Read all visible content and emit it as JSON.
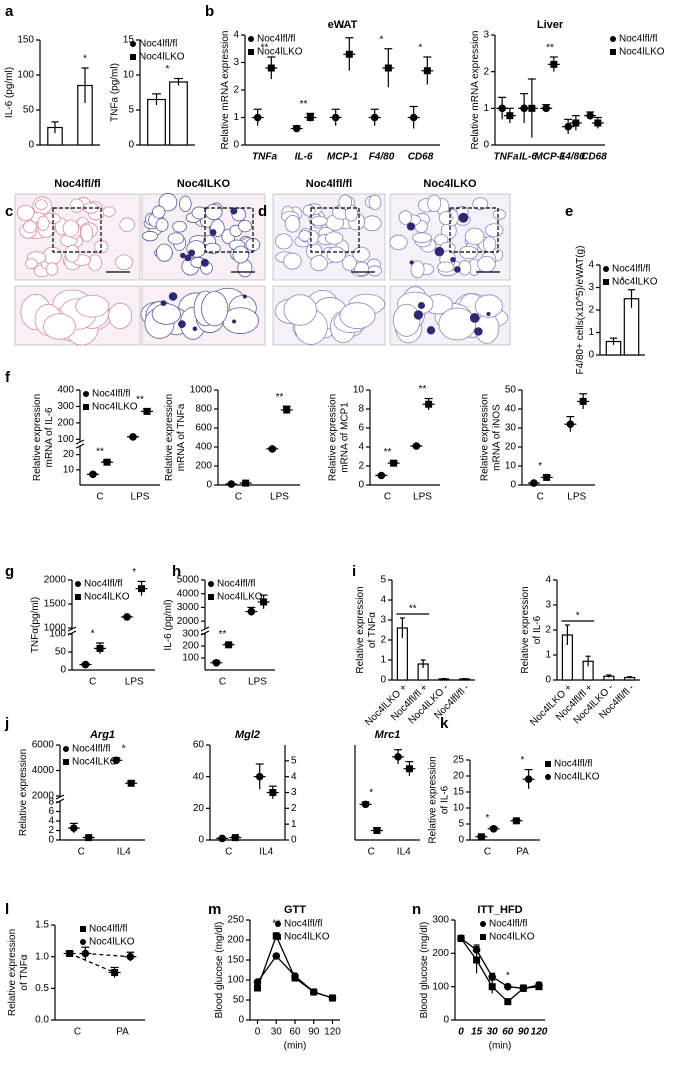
{
  "chart_data": [
    {
      "type": "bar",
      "label": "a",
      "ylabel": "IL-6 (pg/ml)",
      "categories": [
        null,
        null
      ],
      "values": [
        25,
        85
      ],
      "errors": [
        8,
        25
      ],
      "color": "#ffffff",
      "ylim": [
        0,
        150
      ],
      "yticks": [
        0,
        50,
        100,
        150
      ],
      "significance": [
        null,
        "*"
      ]
    },
    {
      "type": "bar",
      "ylabel": "TNFa (pg/ml)",
      "categories": [
        null
      ],
      "series": [
        {
          "name": "Noc4lfl/fl",
          "color": "#ffffff",
          "values": [
            6.5
          ],
          "errors": [
            0.8
          ]
        },
        {
          "name": "Noc4lLKO",
          "color": "#ffffff",
          "values": [
            9
          ],
          "errors": [
            0.5
          ]
        }
      ],
      "ylim": [
        0,
        15
      ],
      "yticks": [
        0,
        5,
        10,
        15
      ],
      "significance": [
        "*"
      ],
      "legend": "top-right"
    },
    {
      "type": "dot",
      "label": "b",
      "title": "eWAT",
      "ylabel": "Relative mRNA expression",
      "categories": [
        "TNFa",
        "IL-6",
        "MCP-1",
        "F4/80",
        "CD68"
      ],
      "series": [
        {
          "name": "Noc4lfl/fl",
          "color": "#000000",
          "marker": "circle",
          "values": [
            1.0,
            0.6,
            1.0,
            1.0,
            1.0
          ],
          "errors": [
            0.3,
            0.1,
            0.3,
            0.3,
            0.4
          ]
        },
        {
          "name": "Noc4lLKO",
          "color": "#000000",
          "marker": "square",
          "values": [
            2.8,
            1.0,
            3.3,
            2.8,
            2.7
          ],
          "errors": [
            0.4,
            0.15,
            0.6,
            0.7,
            0.5
          ]
        }
      ],
      "ylim": [
        0,
        4
      ],
      "yticks": [
        0,
        1,
        2,
        3,
        4
      ],
      "significance": [
        "**",
        "**",
        "*",
        "*",
        "*"
      ],
      "legend": "top-left"
    },
    {
      "type": "dot",
      "title": "Liver",
      "ylabel": "Relative mRNA expression",
      "categories": [
        "TNFa",
        "IL-6",
        "MCP-1",
        "F4/80",
        "CD68"
      ],
      "series": [
        {
          "name": "Noc4lfl/fl",
          "color": "#000000",
          "marker": "circle",
          "values": [
            1.0,
            1.0,
            1.0,
            0.5,
            0.8
          ],
          "errors": [
            0.3,
            0.4,
            0.1,
            0.2,
            0.1
          ]
        },
        {
          "name": "Noc4lLKO",
          "color": "#000000",
          "marker": "square",
          "values": [
            0.8,
            1.0,
            2.2,
            0.6,
            0.6
          ],
          "errors": [
            0.2,
            0.8,
            0.2,
            0.2,
            0.15
          ]
        }
      ],
      "ylim": [
        0,
        3
      ],
      "yticks": [
        0,
        1,
        2,
        3
      ],
      "significance": [
        null,
        null,
        "**",
        null,
        null
      ],
      "legend": "right"
    },
    {
      "type": "bar",
      "label": "e",
      "ylabel": "F4/80+ cells(x10^5)/eWAT(g)",
      "categories": [
        null
      ],
      "series": [
        {
          "name": "Noc4lfl/fl",
          "color": "#ffffff",
          "values": [
            0.6
          ],
          "errors": [
            0.15
          ]
        },
        {
          "name": "Noc4lLKO",
          "color": "#ffffff",
          "values": [
            2.5
          ],
          "errors": [
            0.4
          ]
        }
      ],
      "ylim": [
        0,
        4
      ],
      "yticks": [
        0,
        1,
        2,
        3,
        4
      ],
      "significance": [
        "*"
      ],
      "legend": "top-left"
    },
    {
      "type": "dot",
      "label": "f",
      "ylabel": [
        "Relative expression",
        "mRNA of IL-6"
      ],
      "categories": [
        "C",
        "LPS"
      ],
      "series": [
        {
          "name": "Noc4lfl/fl",
          "color": "#000000",
          "marker": "circle",
          "values": [
            7,
            115
          ],
          "errors": [
            0.5,
            3
          ]
        },
        {
          "name": "Noc4lLKO",
          "color": "#000000",
          "marker": "square",
          "values": [
            15,
            270
          ],
          "errors": [
            1,
            15
          ]
        }
      ],
      "ylim": [
        0,
        400
      ],
      "ybreak": [
        25,
        90
      ],
      "yticks": [
        10,
        20,
        100,
        200,
        300,
        400
      ],
      "significance": [
        "**",
        "**"
      ],
      "legend": "top-left"
    },
    {
      "type": "dot",
      "ylabel": [
        "Relative expression",
        "mRNA of TNFa"
      ],
      "categories": [
        "C",
        "LPS"
      ],
      "series": [
        {
          "name": "Noc4lfl/fl",
          "color": "#000000",
          "marker": "circle",
          "values": [
            10,
            380
          ],
          "errors": [
            2,
            10
          ]
        },
        {
          "name": "Noc4lLKO",
          "color": "#000000",
          "marker": "square",
          "values": [
            20,
            790
          ],
          "errors": [
            5,
            40
          ]
        }
      ],
      "ylim": [
        0,
        1000
      ],
      "yticks": [
        0,
        200,
        400,
        600,
        800,
        1000
      ],
      "significance": [
        null,
        "**"
      ]
    },
    {
      "type": "dot",
      "ylabel": [
        "Relative expression",
        "mRNA of MCP1"
      ],
      "categories": [
        "C",
        "LPS"
      ],
      "series": [
        {
          "name": "Noc4lfl/fl",
          "color": "#000000",
          "marker": "circle",
          "values": [
            1,
            4.1
          ],
          "errors": [
            0.1,
            0.1
          ]
        },
        {
          "name": "Noc4lLKO",
          "color": "#000000",
          "marker": "square",
          "values": [
            2.3,
            8.5
          ],
          "errors": [
            0.2,
            0.6
          ]
        }
      ],
      "ylim": [
        0,
        10
      ],
      "yticks": [
        0,
        2,
        4,
        6,
        8,
        10
      ],
      "significance": [
        "**",
        "**"
      ]
    },
    {
      "type": "dot",
      "ylabel": [
        "Relative expression",
        "mRNA of iNOS"
      ],
      "categories": [
        "C",
        "LPS"
      ],
      "series": [
        {
          "name": "Noc4lfl/fl",
          "color": "#000000",
          "marker": "circle",
          "values": [
            1,
            32
          ],
          "errors": [
            0.3,
            4
          ]
        },
        {
          "name": "Noc4lLKO",
          "color": "#000000",
          "marker": "square",
          "values": [
            4,
            44
          ],
          "errors": [
            1,
            4
          ]
        }
      ],
      "ylim": [
        0,
        50
      ],
      "yticks": [
        0,
        10,
        20,
        30,
        40,
        50
      ],
      "significance": [
        "*",
        null
      ]
    },
    {
      "type": "dot",
      "label": "g",
      "ylabel": "TNFα(pg/ml)",
      "categories": [
        "C",
        "LPS"
      ],
      "series": [
        {
          "name": "Noc4lfl/fl",
          "color": "#000000",
          "marker": "circle",
          "values": [
            15,
            1230
          ],
          "errors": [
            3,
            15
          ]
        },
        {
          "name": "Noc4lLKO",
          "color": "#000000",
          "marker": "square",
          "values": [
            60,
            1820
          ],
          "errors": [
            15,
            150
          ]
        }
      ],
      "ylim": [
        0,
        2000
      ],
      "ybreak": [
        100,
        1000
      ],
      "yticks": [
        0,
        50,
        100,
        1000,
        1500,
        2000
      ],
      "significance": [
        "*",
        "*"
      ],
      "legend": "top-left"
    },
    {
      "type": "dot",
      "label": "h",
      "ylabel": "IL-6 (pg/ml)",
      "categories": [
        "C",
        "LPS"
      ],
      "series": [
        {
          "name": "Noc4lfl/fl",
          "color": "#000000",
          "marker": "circle",
          "values": [
            60,
            2700
          ],
          "errors": [
            15,
            300
          ]
        },
        {
          "name": "Noc4lLKO",
          "color": "#000000",
          "marker": "square",
          "values": [
            210,
            3400
          ],
          "errors": [
            10,
            500
          ]
        }
      ],
      "ylim": [
        0,
        5000
      ],
      "ybreak": [
        300,
        1500
      ],
      "yticks": [
        100,
        200,
        300,
        2000,
        3000,
        4000,
        5000
      ],
      "significance": [
        "**",
        null
      ],
      "legend": "top-left"
    },
    {
      "type": "bar",
      "label": "i",
      "ylabel": [
        "Relative expression",
        "of TNFα"
      ],
      "categories": [
        "Noc4lLKO +",
        "Noc4lfl/fl +",
        "Noc4lLKO -",
        "Noc4lfl/fl -"
      ],
      "values": [
        2.6,
        0.8,
        0.05,
        0.05
      ],
      "errors": [
        0.5,
        0.2,
        0.02,
        0.02
      ],
      "color": "#ffffff",
      "ylim": [
        0,
        5
      ],
      "yticks": [
        0,
        1,
        2,
        3,
        4,
        5
      ],
      "significance": [
        "**",
        null,
        null,
        null
      ]
    },
    {
      "type": "bar",
      "ylabel": [
        "Relative expression",
        "of IL-6"
      ],
      "categories": [
        "Noc4lLKO +",
        "Noc4lfl/fl +",
        "Noc4lLKO -",
        "Noc4lfl/fl -"
      ],
      "values": [
        1.8,
        0.75,
        0.15,
        0.1
      ],
      "errors": [
        0.4,
        0.2,
        0.05,
        0.03
      ],
      "color": "#ffffff",
      "ylim": [
        0,
        4
      ],
      "yticks": [
        0,
        1,
        2,
        3,
        4
      ],
      "significance": [
        "*",
        null,
        null,
        null
      ]
    },
    {
      "type": "dot",
      "label": "j",
      "title": "Arg1",
      "ylabel": "Relative expression",
      "categories": [
        "C",
        "IL4"
      ],
      "series": [
        {
          "name": "Noc4lfl/fl",
          "color": "#000000",
          "marker": "circle",
          "values": [
            2.5,
            4800
          ],
          "errors": [
            1,
            200
          ]
        },
        {
          "name": "Noc4lLKO",
          "color": "#000000",
          "marker": "square",
          "values": [
            0.5,
            3000
          ],
          "errors": [
            0.2,
            150
          ]
        }
      ],
      "ylim": [
        0,
        6000
      ],
      "ybreak": [
        8,
        2000
      ],
      "yticks": [
        0,
        2,
        4,
        6,
        8,
        2000,
        4000,
        6000
      ],
      "significance": [
        null,
        "*"
      ],
      "legend": "top-left"
    },
    {
      "type": "dot",
      "title": "Mgl2",
      "categories": [
        "C",
        "IL4"
      ],
      "series": [
        {
          "color": "#000000",
          "marker": "circle",
          "values": [
            1,
            40
          ],
          "errors": [
            0.3,
            8
          ]
        },
        {
          "color": "#000000",
          "marker": "square",
          "values": [
            1.5,
            30
          ],
          "errors": [
            0.5,
            4
          ]
        }
      ],
      "ylim": [
        0,
        60
      ],
      "yticks": [
        0,
        20,
        40,
        60
      ],
      "y2lim": [
        0,
        6
      ],
      "y2ticks": [
        0,
        1,
        2,
        3,
        4,
        5
      ]
    },
    {
      "type": "dot",
      "title": "Mrc1",
      "categories": [
        "C",
        "IL4"
      ],
      "series": [
        {
          "color": "#000000",
          "marker": "circle",
          "values": [
            1.5,
            3.5
          ],
          "errors": [
            0.1,
            0.3
          ]
        },
        {
          "color": "#000000",
          "marker": "square",
          "values": [
            0.4,
            3.0
          ],
          "errors": [
            0.1,
            0.3
          ]
        }
      ],
      "ylim": [
        0,
        4
      ],
      "significance": [
        "*",
        null
      ]
    },
    {
      "type": "dot",
      "label": "k",
      "ylabel": [
        "Relative expression",
        "of IL-6"
      ],
      "categories": [
        "C",
        "PA"
      ],
      "series": [
        {
          "name": "Noc4lfl/fl",
          "color": "#000000",
          "marker": "square",
          "values": [
            1,
            6
          ],
          "errors": [
            0.3,
            0.3
          ]
        },
        {
          "name": "Noc4lLKO",
          "color": "#000000",
          "marker": "circle",
          "values": [
            3.5,
            19
          ],
          "errors": [
            0.5,
            3
          ]
        }
      ],
      "ylim": [
        0,
        25
      ],
      "yticks": [
        0,
        5,
        10,
        15,
        20,
        25
      ],
      "significance": [
        "*",
        "*"
      ],
      "legend": "right"
    },
    {
      "type": "dot",
      "label": "l",
      "ylabel": [
        "Relative expression",
        "of TNFα"
      ],
      "categories": [
        "C",
        "PA"
      ],
      "series": [
        {
          "name": "Noc4lfl/fl",
          "color": "#000000",
          "marker": "square",
          "values": [
            1.05,
            0.75
          ],
          "errors": [
            0.03,
            0.08
          ]
        },
        {
          "name": "Noc4lLKO",
          "color": "#000000",
          "marker": "circle",
          "values": [
            1.05,
            1.0
          ],
          "errors": [
            0.1,
            0.07
          ]
        }
      ],
      "ylim": [
        0,
        1.5
      ],
      "yticks": [
        {
          "value": 0,
          "label": "0.0"
        },
        0.5,
        {
          "value": 1,
          "label": "1.0"
        },
        1.5
      ],
      "connect": "dashed",
      "legend": "top-right"
    },
    {
      "type": "line",
      "label": "m",
      "title": "GTT",
      "x": [
        0,
        30,
        60,
        90,
        120
      ],
      "xlim": [
        -12,
        132
      ],
      "xticks": [
        0,
        30,
        60,
        90,
        120
      ],
      "xlabel": "(min)",
      "ylabel": "Blood glucose (mg/dl)",
      "series": [
        {
          "name": "Noc4lfl/fl",
          "color": "#000000",
          "marker": "circle",
          "values": [
            95,
            160,
            110,
            70,
            55
          ],
          "errors": [
            5,
            5,
            5,
            3,
            4
          ]
        },
        {
          "name": "Noc4lLKO",
          "color": "#000000",
          "marker": "square",
          "values": [
            80,
            210,
            105,
            70,
            55
          ],
          "errors": [
            5,
            8,
            8,
            3,
            4
          ]
        }
      ],
      "ylim": [
        0,
        250
      ],
      "yticks": [
        0,
        50,
        100,
        150,
        200,
        250
      ],
      "significance": [
        null,
        "**",
        null,
        null,
        null
      ],
      "legend": "top-right"
    },
    {
      "type": "line",
      "label": "n",
      "title": "ITT_HFD",
      "categories": [
        "0",
        "15",
        "30",
        "60",
        "90",
        "120"
      ],
      "xlabel": "(min)",
      "ylabel": "Blood glucose (mg/dl)",
      "series": [
        {
          "name": "Noc4lfl/fl",
          "color": "#000000",
          "marker": "circle",
          "values": [
            245,
            210,
            130,
            100,
            95,
            105
          ],
          "errors": [
            5,
            15,
            10,
            5,
            5,
            8
          ]
        },
        {
          "name": "Noc4lLKO",
          "color": "#000000",
          "marker": "square",
          "values": [
            245,
            180,
            100,
            55,
            95,
            100
          ],
          "errors": [
            5,
            40,
            20,
            8,
            10,
            10
          ]
        }
      ],
      "ylim": [
        0,
        300
      ],
      "yticks": [
        0,
        100,
        200,
        300
      ],
      "significance": [
        null,
        null,
        null,
        "*",
        null,
        null
      ],
      "legend": "top-right"
    }
  ],
  "image_panels": [
    {
      "label": "c",
      "titles": [
        "Noc4lfl/fl",
        "Noc4lLKO"
      ]
    },
    {
      "label": "d",
      "titles": [
        "Noc4lfl/fl",
        "Noc4lLKO"
      ]
    }
  ]
}
